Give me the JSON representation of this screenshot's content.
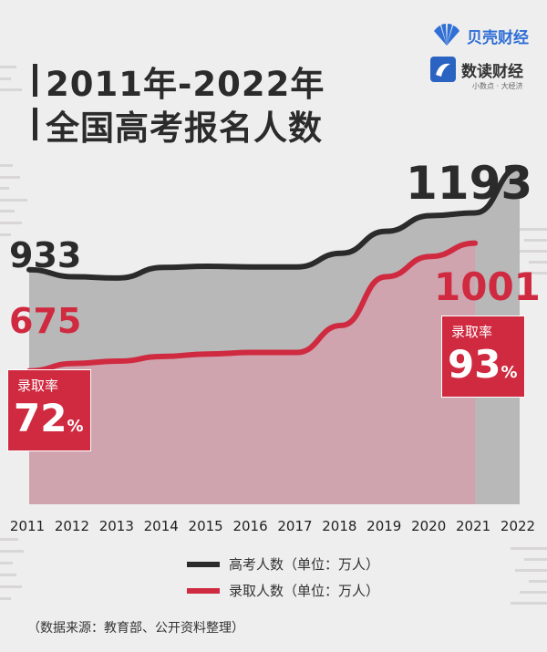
{
  "header": {
    "title_line1": "2011年-2022年",
    "title_line2": "全国高考报名人数"
  },
  "brand": {
    "logo1": "贝壳财经",
    "logo2": "数读财经",
    "logo2_sub": "小数点 · 大经济"
  },
  "chart_data": {
    "type": "area",
    "x": [
      "2011",
      "2012",
      "2013",
      "2014",
      "2015",
      "2016",
      "2017",
      "2018",
      "2019",
      "2020",
      "2021",
      "2022"
    ],
    "series": [
      {
        "name": "高考人数（单位：万人）",
        "values": [
          933,
          915,
          912,
          939,
          942,
          940,
          940,
          975,
          1031,
          1071,
          1078,
          1193
        ],
        "color": "#2b2b2b"
      },
      {
        "name": "录取人数（单位：万人）",
        "values": [
          675,
          694,
          700,
          712,
          718,
          722,
          722,
          791,
          915,
          967,
          1001,
          null
        ],
        "color": "#cf2a40"
      }
    ],
    "ylim": [
      0,
      1200
    ],
    "annotations": {
      "applicants_2011": "933",
      "applicants_2022": "1193",
      "admitted_2011": "675",
      "admitted_2021": "1001",
      "rate_label": "录取率",
      "rate_2011": "72",
      "rate_2021": "93",
      "percent": "%"
    }
  },
  "legend": {
    "applicants": "高考人数（单位：万人）",
    "admitted": "录取人数（单位：万人）"
  },
  "source": "（数据来源：教育部、公开资料整理）"
}
